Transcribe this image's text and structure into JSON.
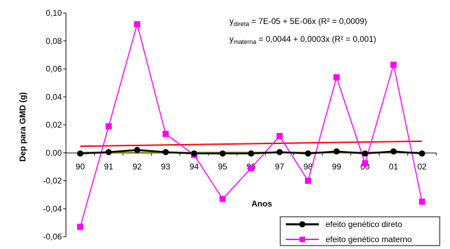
{
  "chart_data": {
    "type": "line",
    "title": "",
    "xlabel": "Anos",
    "ylabel": "Dep para GMD (g)",
    "categories": [
      "90",
      "91",
      "92",
      "93",
      "94",
      "95",
      "96",
      "97",
      "98",
      "99",
      "00",
      "01",
      "02"
    ],
    "y_ticks": [
      "0,10",
      "0,08",
      "0,06",
      "0,04",
      "0,02",
      "0,00",
      "-0,02",
      "-0,04",
      "-0,06"
    ],
    "ylim": [
      -0.06,
      0.1
    ],
    "grid": false,
    "legend_position": "bottom-right",
    "series": [
      {
        "name": "efeito genético direto",
        "color": "#000000",
        "marker": "circle",
        "values": [
          -0.0005,
          0.0005,
          0.002,
          0.0005,
          -0.0005,
          -0.0005,
          -0.0005,
          0.0005,
          -0.0005,
          0.001,
          -0.0005,
          0.001,
          -0.0005
        ]
      },
      {
        "name": "efeito genético materno",
        "color": "#ff00ff",
        "marker": "square",
        "values": [
          -0.053,
          0.019,
          0.092,
          0.0135,
          -0.0015,
          -0.033,
          -0.011,
          0.012,
          -0.02,
          0.054,
          -0.0075,
          0.063,
          -0.035
        ]
      }
    ],
    "trendlines": [
      {
        "series": "efeito genético direto",
        "intercept": 7e-05,
        "slope": 5e-06,
        "color": "#808000",
        "equation_main": "y",
        "equation_sub": "direta",
        "equation_rest": " = 7E-05 + 5E-06x  (R² = 0,0009)"
      },
      {
        "series": "efeito genético materno",
        "intercept": 0.0044,
        "slope": 0.0003,
        "color": "#ff0000",
        "equation_main": "y",
        "equation_sub": "materna",
        "equation_rest": " = 0,0044 + 0,0003x  (R² = 0,001)"
      }
    ]
  }
}
